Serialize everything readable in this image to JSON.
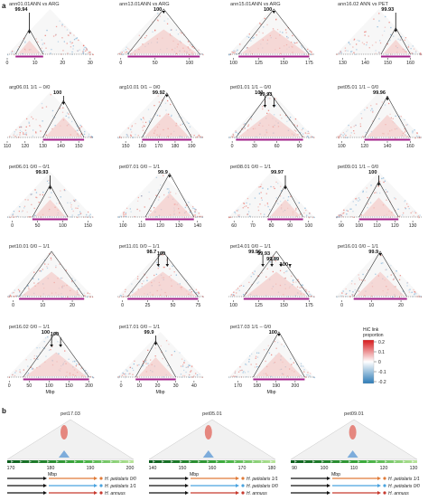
{
  "figure": {
    "panel_a_label": "a",
    "panel_b_label": "b",
    "xlabel": "Mbp",
    "legend": {
      "title_line1": "HiC link",
      "title_line2": "proportion",
      "ticks": [
        "0.2",
        "0.1",
        "0",
        "-0.1",
        "-0.2"
      ],
      "color_pos": "#d7191c",
      "color_neg": "#2c7bb6"
    }
  },
  "chart_data": [
    {
      "type": "heatmap",
      "title": "ann01.01ANN vs ARG",
      "xticks": [
        "0",
        "10",
        "20",
        "30"
      ],
      "xlim": [
        0,
        31
      ],
      "triangle": [
        3,
        13
      ],
      "value": "99.94",
      "xlabel": ""
    },
    {
      "type": "heatmap",
      "title": "ann13.01ANN vs ARG",
      "xticks": [
        "0",
        "50",
        "100"
      ],
      "xlim": [
        -5,
        120
      ],
      "triangle": [
        10,
        115
      ],
      "value": "100",
      "xlabel": ""
    },
    {
      "type": "heatmap",
      "title": "ann15.01ANN vs ARG",
      "xticks": [
        "100",
        "125",
        "150",
        "175"
      ],
      "xlim": [
        95,
        180
      ],
      "triangle": [
        105,
        175
      ],
      "value": "100",
      "xlabel": ""
    },
    {
      "type": "heatmap",
      "title": "ann16.02 ANN vs PET",
      "xticks": [
        "130",
        "140",
        "150",
        "160"
      ],
      "xlim": [
        127,
        165
      ],
      "triangle": [
        147,
        160
      ],
      "value": "99.93",
      "xlabel": ""
    },
    {
      "type": "heatmap",
      "title": "arg06.01 1/1 – 0/0",
      "xticks": [
        "110",
        "120",
        "130",
        "140",
        "150"
      ],
      "xlim": [
        110,
        158
      ],
      "triangle": [
        130,
        153
      ],
      "value": "100",
      "xlabel": ""
    },
    {
      "type": "heatmap",
      "title": "arg10.01 0/1 – 0/0",
      "xticks": [
        "150",
        "160",
        "170",
        "180",
        "190"
      ],
      "xlim": [
        145,
        197
      ],
      "triangle": [
        160,
        190
      ],
      "value": "99.92",
      "xlabel": ""
    },
    {
      "type": "heatmap",
      "title": "pet01.01 1/1 – 0/0",
      "xticks": [
        "0",
        "30",
        "60",
        "90"
      ],
      "xlim": [
        -5,
        110
      ],
      "triangle": [
        5,
        95
      ],
      "value": "100",
      "value2": "99.93",
      "xlabel": ""
    },
    {
      "type": "heatmap",
      "title": "pet05.01 1/1 – 0/0",
      "xticks": [
        "100",
        "120",
        "140",
        "160"
      ],
      "xlim": [
        95,
        170
      ],
      "triangle": [
        120,
        160
      ],
      "value": "99.96",
      "xlabel": ""
    },
    {
      "type": "heatmap",
      "title": "pet06.01 0/0 – 0/1",
      "xticks": [
        "0",
        "50",
        "100",
        "150"
      ],
      "xlim": [
        -10,
        160
      ],
      "triangle": [
        40,
        110
      ],
      "value": "99.93",
      "xlabel": ""
    },
    {
      "type": "heatmap",
      "title": "pet07.01 0/0 – 1/1",
      "xticks": [
        "100",
        "110",
        "120",
        "130",
        "140"
      ],
      "xlim": [
        97,
        143
      ],
      "triangle": [
        112,
        138
      ],
      "value": "99.9",
      "xlabel": ""
    },
    {
      "type": "heatmap",
      "title": "pet08.01 0/0 – 1/1",
      "xticks": [
        "60",
        "70",
        "80",
        "90",
        "100"
      ],
      "xlim": [
        57,
        103
      ],
      "triangle": [
        78,
        97
      ],
      "value": "99.97",
      "xlabel": ""
    },
    {
      "type": "heatmap",
      "title": "pet09.01 1/1 – 0/0",
      "xticks": [
        "90",
        "100",
        "110",
        "120",
        "130"
      ],
      "xlim": [
        87,
        135
      ],
      "triangle": [
        100,
        122
      ],
      "value": "100",
      "xlabel": ""
    },
    {
      "type": "heatmap",
      "title": "pet10.01 0/0 – 1/1",
      "xticks": [
        "0",
        "10",
        "20"
      ],
      "xlim": [
        -2,
        27
      ],
      "triangle": [
        2,
        24
      ],
      "value": "",
      "xlabel": ""
    },
    {
      "type": "heatmap",
      "title": "pet11.01 0/0 – 1/1",
      "xticks": [
        "0",
        "25",
        "50",
        "75"
      ],
      "xlim": [
        -5,
        80
      ],
      "triangle": [
        5,
        75
      ],
      "value": "98.7",
      "value2": "100",
      "xlabel": ""
    },
    {
      "type": "heatmap",
      "title": "pet14.01 0/0 – 1/1",
      "xticks": [
        "100",
        "125",
        "150",
        "175"
      ],
      "xlim": [
        95,
        180
      ],
      "triangle": [
        110,
        175
      ],
      "value": "99.96",
      "value2": "99.93",
      "value3": "99.89",
      "value4": "100",
      "xlabel": ""
    },
    {
      "type": "heatmap",
      "title": "pet16.01 0/0 – 1/1",
      "xticks": [
        "0",
        "10",
        "20"
      ],
      "xlim": [
        -2,
        27
      ],
      "triangle": [
        4,
        22
      ],
      "value": "99.9",
      "xlabel": ""
    },
    {
      "type": "heatmap",
      "title": "pet16.02 0/0 – 1/1",
      "xticks": [
        "0",
        "50",
        "100",
        "150",
        "200"
      ],
      "xlim": [
        -5,
        210
      ],
      "triangle": [
        35,
        200
      ],
      "value": "100",
      "value2": "100",
      "xlabel": "Mbp"
    },
    {
      "type": "heatmap",
      "title": "pet17.01 0/0 – 1/1",
      "xticks": [
        "0",
        "10",
        "20",
        "30",
        "40"
      ],
      "xlim": [
        -2,
        45
      ],
      "triangle": [
        8,
        30
      ],
      "value": "99.9",
      "xlabel": "Mbp"
    },
    {
      "type": "heatmap",
      "title": "pet17.03 1/1 – 0/0",
      "xticks": [
        "170",
        "180",
        "190",
        "200"
      ],
      "xlim": [
        165,
        210
      ],
      "triangle": [
        178,
        205
      ],
      "value": "100",
      "xlabel": "Mbp"
    }
  ],
  "panel_b": {
    "panels": [
      {
        "title": "pet17.03",
        "xticks": [
          "170",
          "180",
          "190",
          "200"
        ]
      },
      {
        "title": "pet05.01",
        "xticks": [
          "140",
          "150",
          "160",
          "170",
          "180"
        ]
      },
      {
        "title": "pet09.01",
        "xticks": [
          "90",
          "100",
          "110",
          "120",
          "130"
        ]
      }
    ],
    "species": [
      {
        "label": "H. petiolaris 0/0",
        "color": "#e07b39"
      },
      {
        "label": "H. petiolaris 1/1",
        "color": "#4aa3df"
      },
      {
        "label": "H. annuus",
        "color": "#c7392e"
      }
    ],
    "species_b2": [
      {
        "label": "H. petiolaris 1/1",
        "color": "#e07b39"
      },
      {
        "label": "H. petiolaris 0/0",
        "color": "#4aa3df"
      },
      {
        "label": "H. annuus",
        "color": "#c7392e"
      }
    ],
    "species_b3": [
      {
        "label": "H. petiolaris 1/1",
        "color": "#e07b39"
      },
      {
        "label": "H. petiolaris 0/0",
        "color": "#4aa3df"
      },
      {
        "label": "H. annuus",
        "color": "#c7392e"
      }
    ]
  }
}
